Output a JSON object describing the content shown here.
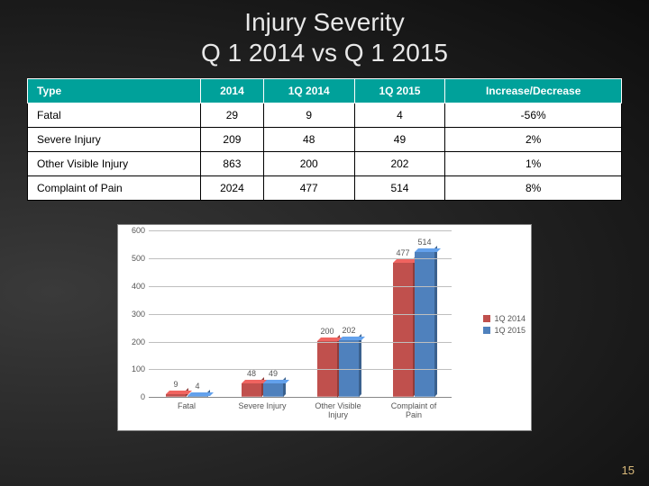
{
  "title_line1": "Injury Severity",
  "title_line2": "Q 1 2014 vs Q 1 2015",
  "table": {
    "header_bg": "#00a19a",
    "columns": [
      "Type",
      "2014",
      "1Q 2014",
      "1Q 2015",
      "Increase/Decrease"
    ],
    "rows": [
      [
        "Fatal",
        "29",
        "9",
        "4",
        "-56%"
      ],
      [
        "Severe Injury",
        "209",
        "48",
        "49",
        "2%"
      ],
      [
        "Other Visible Injury",
        "863",
        "200",
        "202",
        "1%"
      ],
      [
        "Complaint of Pain",
        "2024",
        "477",
        "514",
        "8%"
      ]
    ]
  },
  "chart": {
    "type": "bar",
    "background_color": "#ffffff",
    "grid_color": "#bfbfbf",
    "label_fontsize": 9,
    "ylim_max": 600,
    "ytick_step": 100,
    "yticks": [
      "0",
      "100",
      "200",
      "300",
      "400",
      "500",
      "600"
    ],
    "categories": [
      "Fatal",
      "Severe Injury",
      "Other Visible\nInjury",
      "Complaint of\nPain"
    ],
    "series": [
      {
        "name": "1Q 2014",
        "color": "#c0504d",
        "values": [
          9,
          48,
          200,
          477
        ]
      },
      {
        "name": "1Q 2015",
        "color": "#4f81bd",
        "values": [
          4,
          49,
          202,
          514
        ]
      }
    ]
  },
  "page_number": "15"
}
